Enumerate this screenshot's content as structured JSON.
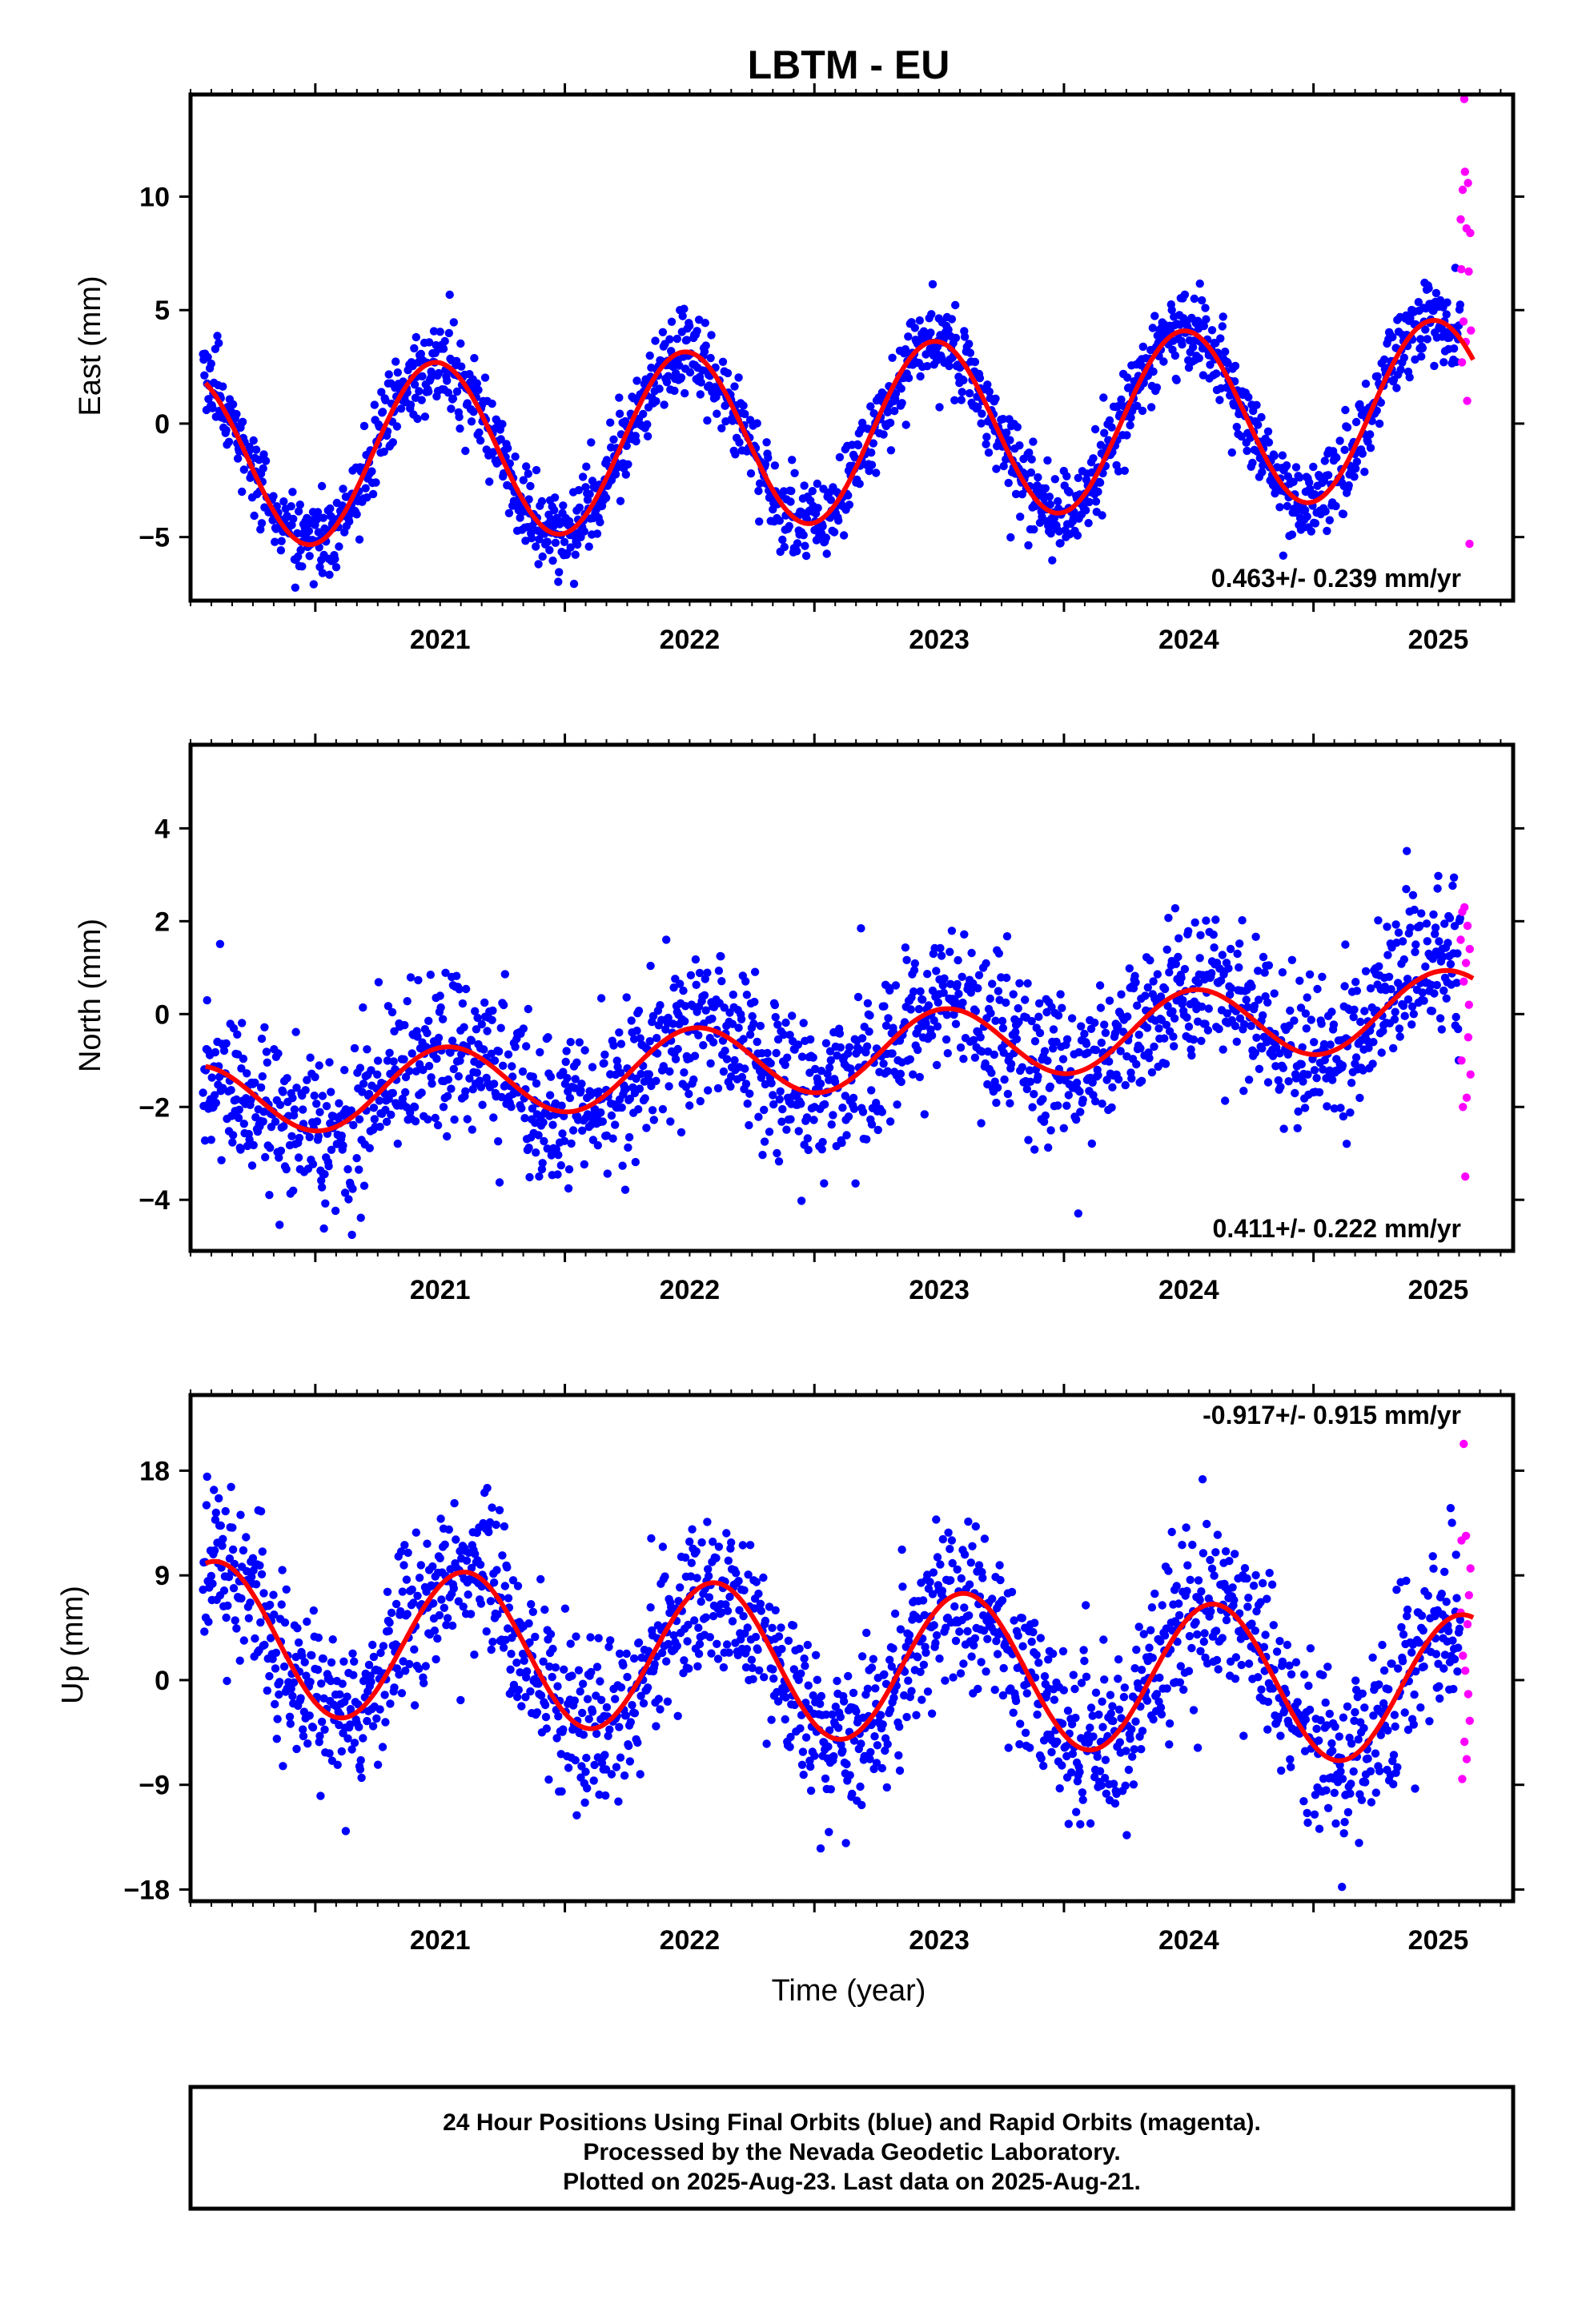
{
  "title": "LBTM - EU",
  "colors": {
    "final": "#0000ff",
    "rapid": "#ff00ff",
    "model": "#ff0000",
    "frame": "#000000"
  },
  "x_axis": {
    "label": "Time (year)",
    "ticks": [
      2021,
      2022,
      2023,
      2024,
      2025
    ],
    "range": [
      2020.5,
      2025.8
    ]
  },
  "footer": {
    "line1": "24 Hour Positions Using Final Orbits (blue) and Rapid Orbits (magenta).",
    "line2": "Processed by the Nevada Geodetic Laboratory.",
    "line3": "Plotted on 2025-Aug-23. Last data on 2025-Aug-21."
  },
  "chart_data": [
    {
      "type": "scatter",
      "ylabel": "East (mm)",
      "yticks": [
        -5,
        0,
        5,
        10
      ],
      "ylim": [
        -7.8,
        14.5
      ],
      "rate_text": "0.463+/- 0.239 mm/yr",
      "rate_position": "bottom-right",
      "model": {
        "offset": -0.5,
        "rate": 0.463,
        "amplitude": 3.9,
        "peak_time": 0.48
      },
      "final_scatter_sd": 0.95,
      "final_range": [
        2020.55,
        2025.59
      ],
      "rapid_points": [
        [
          2025.59,
          9.0
        ],
        [
          2025.592,
          6.8
        ],
        [
          2025.595,
          2.7
        ],
        [
          2025.598,
          10.3
        ],
        [
          2025.601,
          4.5
        ],
        [
          2025.604,
          14.3
        ],
        [
          2025.607,
          11.1
        ],
        [
          2025.61,
          3.6
        ],
        [
          2025.613,
          8.6
        ],
        [
          2025.616,
          1.0
        ],
        [
          2025.619,
          10.6
        ],
        [
          2025.622,
          6.7
        ],
        [
          2025.625,
          -5.3
        ],
        [
          2025.628,
          8.4
        ],
        [
          2025.631,
          4.1
        ]
      ]
    },
    {
      "type": "scatter",
      "ylabel": "North (mm)",
      "yticks": [
        -4,
        -2,
        0,
        2,
        4
      ],
      "ylim": [
        -5.1,
        5.8
      ],
      "rate_text": "0.411+/- 0.222 mm/yr",
      "rate_position": "bottom-right",
      "model": {
        "offset": -0.9,
        "rate": 0.411,
        "amplitude": 0.8,
        "peak_time": 0.52
      },
      "final_scatter_sd": 0.85,
      "final_range": [
        2020.55,
        2025.59
      ],
      "rapid_points": [
        [
          2025.59,
          1.6
        ],
        [
          2025.593,
          -1.0
        ],
        [
          2025.596,
          2.2
        ],
        [
          2025.599,
          -2.0
        ],
        [
          2025.602,
          0.7
        ],
        [
          2025.605,
          2.3
        ],
        [
          2025.608,
          -3.5
        ],
        [
          2025.611,
          1.1
        ],
        [
          2025.614,
          -1.8
        ],
        [
          2025.617,
          1.9
        ],
        [
          2025.62,
          -0.5
        ],
        [
          2025.623,
          0.2
        ],
        [
          2025.626,
          1.4
        ],
        [
          2025.629,
          -1.3
        ]
      ]
    },
    {
      "type": "scatter",
      "ylabel": "Up (mm)",
      "yticks": [
        -18,
        -9,
        0,
        9,
        18
      ],
      "ylim": [
        -19.0,
        24.5
      ],
      "rate_text": "-0.917+/- 0.915 mm/yr",
      "rate_position": "top-right",
      "model": {
        "offset": 1.5,
        "rate": -0.917,
        "amplitude": 6.5,
        "peak_time": 0.6
      },
      "final_scatter_sd": 3.6,
      "final_range": [
        2020.55,
        2025.59
      ],
      "rapid_points": [
        [
          2025.59,
          5.8
        ],
        [
          2025.593,
          12.0
        ],
        [
          2025.596,
          -8.5
        ],
        [
          2025.599,
          2.1
        ],
        [
          2025.602,
          20.3
        ],
        [
          2025.605,
          -5.3
        ],
        [
          2025.608,
          0.8
        ],
        [
          2025.611,
          12.4
        ],
        [
          2025.614,
          -6.8
        ],
        [
          2025.617,
          4.8
        ],
        [
          2025.62,
          -1.2
        ],
        [
          2025.623,
          7.3
        ],
        [
          2025.626,
          -3.5
        ],
        [
          2025.629,
          9.6
        ]
      ]
    }
  ]
}
